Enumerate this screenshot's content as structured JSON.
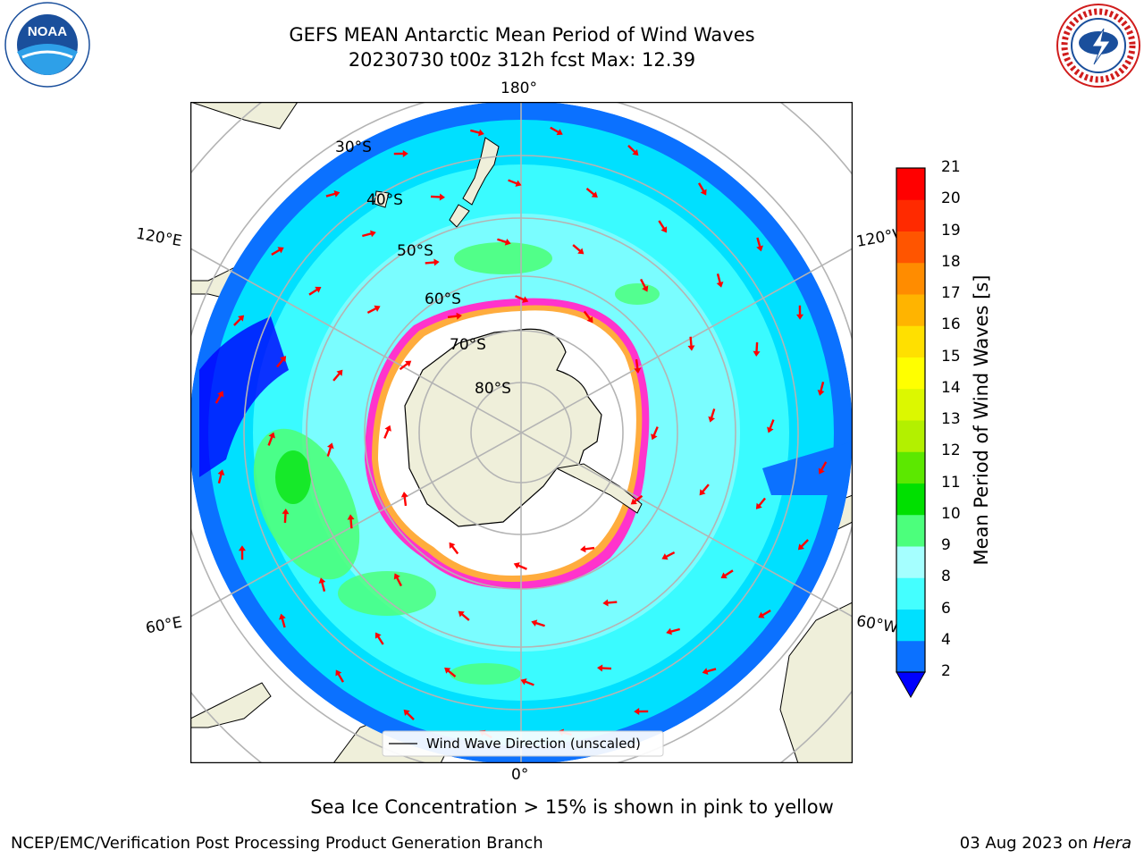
{
  "header": {
    "title_line1": "GEFS MEAN Antarctic Mean Period of Wind Waves",
    "title_line2": "20230730 t00z 312h fcst   Max: 12.39"
  },
  "logos": {
    "left": {
      "icon": "noaa-logo-icon",
      "text": "NOAA",
      "ring_text": "NATIONAL OCEANIC AND ATMOSPHERIC ADMINISTRATION · U.S. DEPARTMENT OF COMMERCE"
    },
    "right": {
      "icon": "nws-logo-icon",
      "ring_text": "NATIONAL WEATHER SERVICE"
    }
  },
  "map": {
    "projection": "south-polar-stereographic",
    "longitude_labels": {
      "top": "180°",
      "bottom": "0°",
      "upper_left": "120°E",
      "lower_left": "60°E",
      "upper_right": "120°W",
      "lower_right": "60°W"
    },
    "latitude_labels": [
      "30°S",
      "40°S",
      "50°S",
      "60°S",
      "70°S",
      "80°S"
    ],
    "legend_label": "Wind Wave Direction (unscaled)",
    "colors": {
      "land": "#efefda",
      "ice_free": "#ffffff",
      "ice_edge": "#ff33cc",
      "arrow": "#ff0000",
      "grid": "#b4b4b4"
    }
  },
  "colorbar": {
    "label": "Mean Period of Wind Waves [s]",
    "ticks": [
      "2",
      "4",
      "6",
      "8",
      "9",
      "10",
      "11",
      "12",
      "13",
      "14",
      "15",
      "16",
      "17",
      "18",
      "19",
      "20",
      "21"
    ],
    "colors": [
      "#0b71ff",
      "#00e0ff",
      "#44ffff",
      "#a5ffff",
      "#4cff7c",
      "#00e000",
      "#5ce800",
      "#b3f000",
      "#dcf800",
      "#ffff00",
      "#ffe000",
      "#ffb400",
      "#ff8c00",
      "#ff5500",
      "#ff2a00",
      "#ff0000"
    ],
    "under_color": "#0000ff"
  },
  "caption": "Sea Ice Concentration > 15% is shown in pink to yellow",
  "footer": {
    "left": "NCEP/EMC/Verification Post Processing Product Generation Branch",
    "right_prefix": "03 Aug 2023 on ",
    "right_machine": "Hera"
  }
}
